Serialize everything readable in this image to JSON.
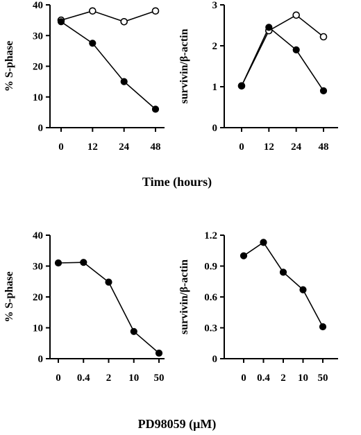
{
  "group_labels": {
    "top": "Time (hours)",
    "bottom": "PD98059 (μM)"
  },
  "chart_data": [
    {
      "id": "top-left",
      "type": "line",
      "categories": [
        "0",
        "12",
        "24",
        "48"
      ],
      "ylabel": "% S-phase",
      "ylim": [
        0,
        40
      ],
      "yticks": [
        "0",
        "10",
        "20",
        "30",
        "40"
      ],
      "grid": false,
      "series": [
        {
          "marker": "open",
          "values": [
            35,
            38,
            34.5,
            38
          ]
        },
        {
          "marker": "filled",
          "values": [
            34.5,
            27.5,
            15,
            6
          ]
        }
      ]
    },
    {
      "id": "top-right",
      "type": "line",
      "categories": [
        "0",
        "12",
        "24",
        "48"
      ],
      "ylabel": "survivin/β-actin",
      "ylim": [
        0,
        3
      ],
      "yticks": [
        "0",
        "1",
        "2",
        "3"
      ],
      "grid": false,
      "series": [
        {
          "marker": "open",
          "values": [
            1.02,
            2.37,
            2.75,
            2.22
          ]
        },
        {
          "marker": "filled",
          "values": [
            1.02,
            2.45,
            1.9,
            0.9
          ]
        }
      ]
    },
    {
      "id": "bottom-left",
      "type": "line",
      "categories": [
        "0",
        "0.4",
        "2",
        "10",
        "50"
      ],
      "ylabel": "% S-phase",
      "ylim": [
        0,
        40
      ],
      "yticks": [
        "0",
        "10",
        "20",
        "30",
        "40"
      ],
      "grid": false,
      "series": [
        {
          "marker": "filled",
          "values": [
            31,
            31.2,
            24.8,
            8.8,
            1.8
          ]
        }
      ]
    },
    {
      "id": "bottom-right",
      "type": "line",
      "categories": [
        "0",
        "0.4",
        "2",
        "10",
        "50"
      ],
      "ylabel": "survivin/β-actin",
      "ylim": [
        0,
        1.2
      ],
      "yticks": [
        "0",
        "0.3",
        "0.6",
        "0.9",
        "1.2"
      ],
      "grid": false,
      "series": [
        {
          "marker": "filled",
          "values": [
            1.0,
            1.13,
            0.84,
            0.67,
            0.31
          ]
        }
      ]
    }
  ]
}
